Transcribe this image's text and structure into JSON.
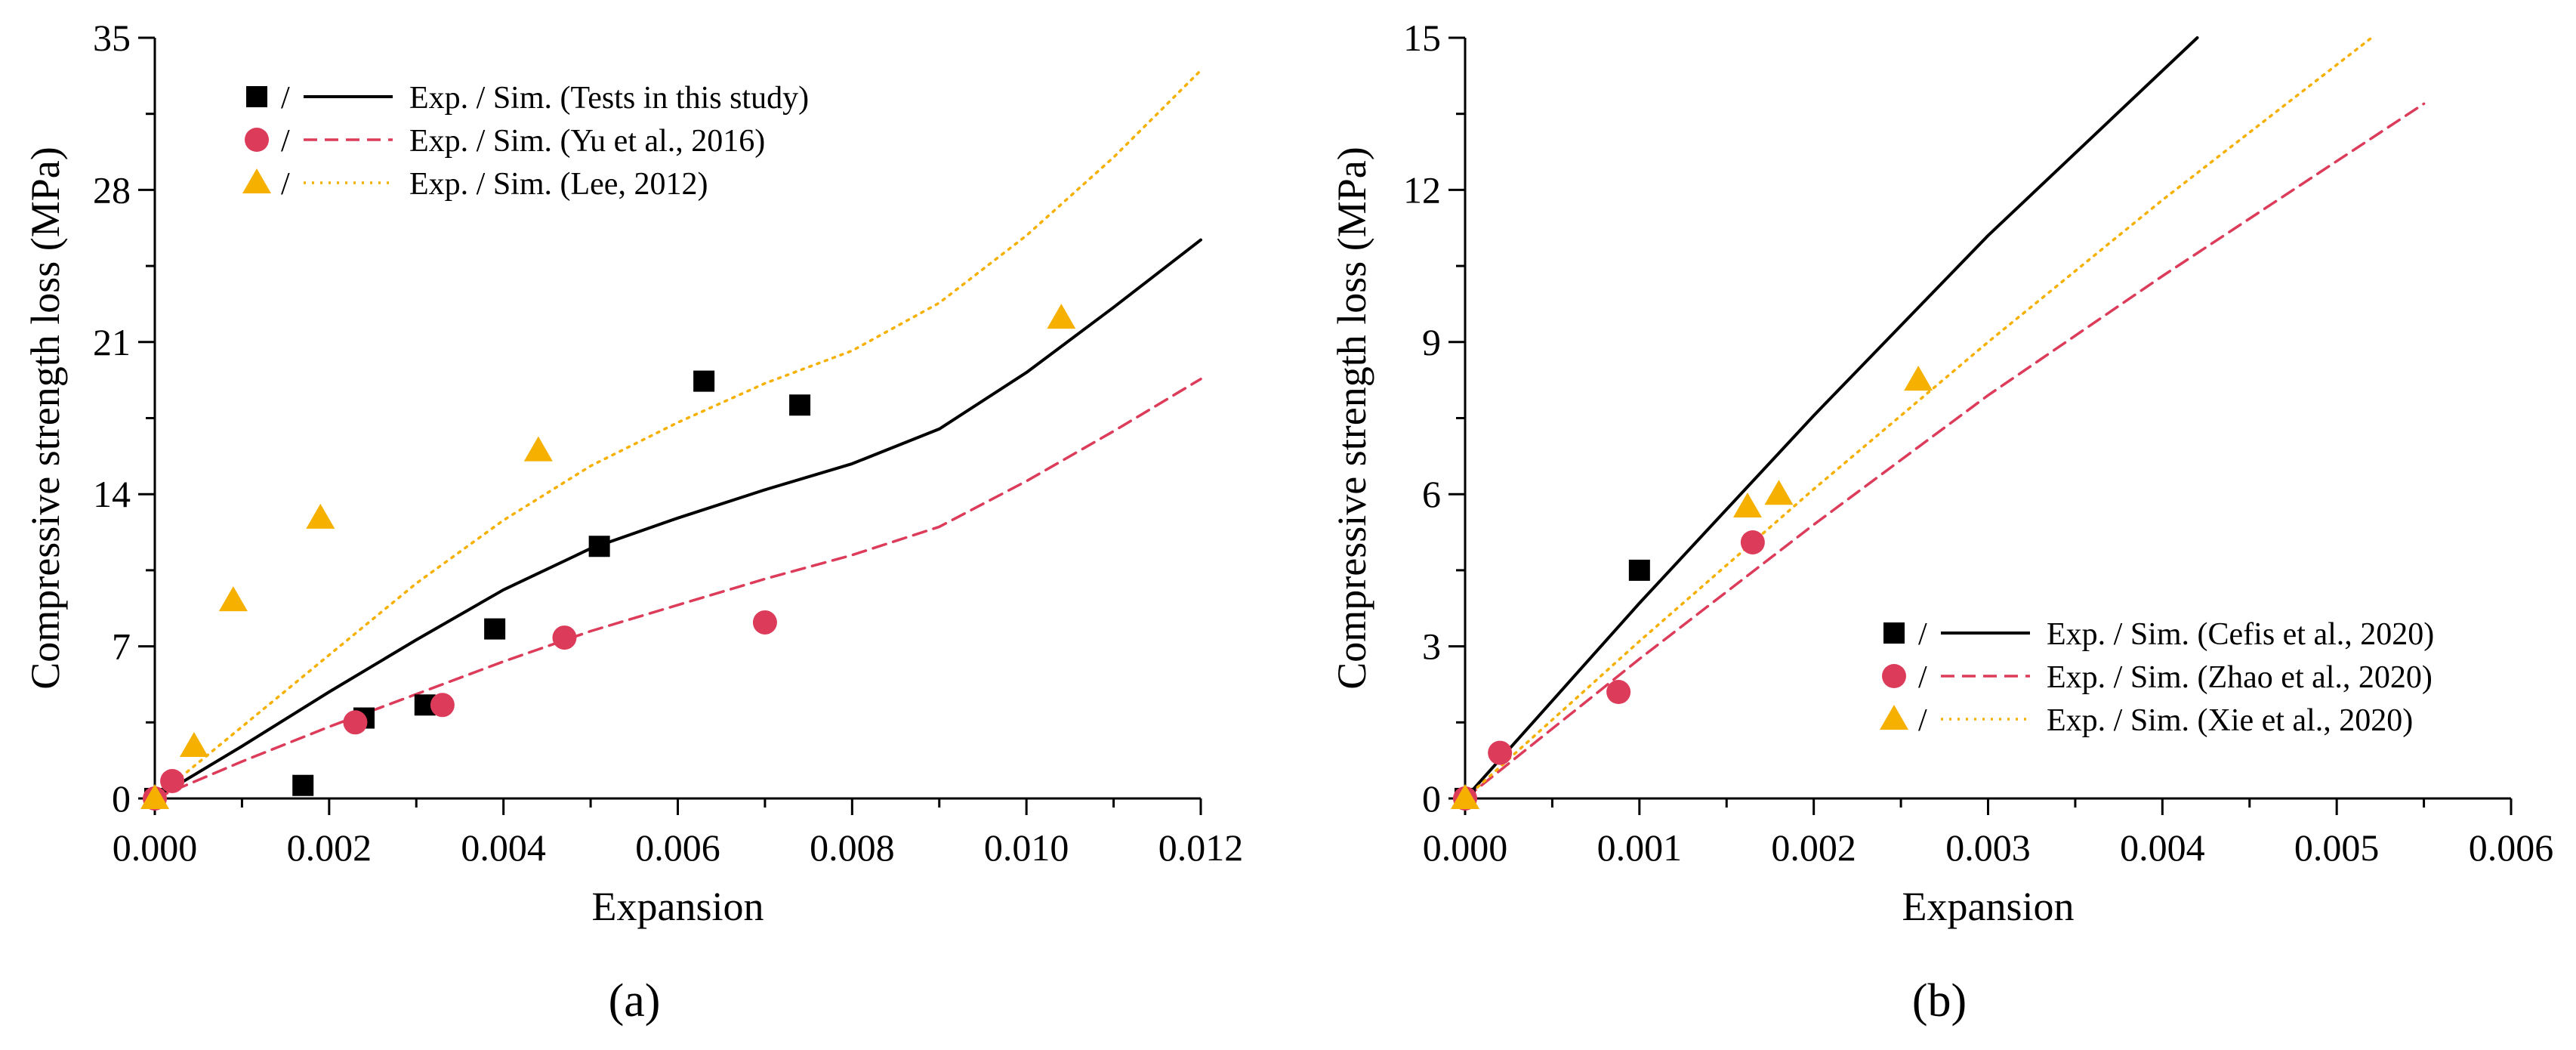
{
  "chart_data": [
    {
      "type": "scatter",
      "panel": "(a)",
      "panel_letter": "a",
      "xlabel": "Expansion",
      "ylabel": "Compressive strength loss (MPa)",
      "xlim": [
        0,
        0.012
      ],
      "ylim": [
        0,
        35
      ],
      "xticks": [
        0.0,
        0.002,
        0.004,
        0.006,
        0.008,
        0.01,
        0.012
      ],
      "xtick_labels": [
        "0.000",
        "0.002",
        "0.004",
        "0.006",
        "0.008",
        "0.010",
        "0.012"
      ],
      "yticks": [
        0,
        7,
        14,
        21,
        28,
        35
      ],
      "ytick_labels": [
        "0",
        "7",
        "14",
        "21",
        "28",
        "35"
      ],
      "legend_position": "top-left",
      "series": [
        {
          "name": "Exp. / Sim. (Tests in this study)",
          "marker": "square",
          "line": "solid",
          "color": "#000000",
          "points": [
            [
              0.0,
              0.0
            ],
            [
              0.0017,
              0.6
            ],
            [
              0.0024,
              3.7
            ],
            [
              0.0031,
              4.3
            ],
            [
              0.0039,
              7.8
            ],
            [
              0.0051,
              11.6
            ],
            [
              0.0063,
              19.2
            ],
            [
              0.0074,
              18.1
            ]
          ],
          "curve": [
            [
              0.0,
              0.0
            ],
            [
              0.001,
              2.4
            ],
            [
              0.002,
              4.9
            ],
            [
              0.003,
              7.3
            ],
            [
              0.004,
              9.6
            ],
            [
              0.005,
              11.5
            ],
            [
              0.006,
              12.9
            ],
            [
              0.007,
              14.2
            ],
            [
              0.008,
              15.4
            ],
            [
              0.009,
              17.0
            ],
            [
              0.01,
              19.6
            ],
            [
              0.011,
              22.6
            ],
            [
              0.012,
              25.7
            ]
          ]
        },
        {
          "name": "Exp. / Sim. (Yu et al., 2016)",
          "marker": "circle",
          "line": "dashed",
          "color": "#dc3c5a",
          "points": [
            [
              0.0,
              0.0
            ],
            [
              0.0002,
              0.8
            ],
            [
              0.0023,
              3.5
            ],
            [
              0.0033,
              4.3
            ],
            [
              0.0047,
              7.4
            ],
            [
              0.007,
              8.1
            ]
          ],
          "curve": [
            [
              0.0,
              0.0
            ],
            [
              0.001,
              1.7
            ],
            [
              0.002,
              3.3
            ],
            [
              0.003,
              4.8
            ],
            [
              0.004,
              6.3
            ],
            [
              0.005,
              7.7
            ],
            [
              0.006,
              8.9
            ],
            [
              0.007,
              10.1
            ],
            [
              0.008,
              11.2
            ],
            [
              0.009,
              12.5
            ],
            [
              0.01,
              14.6
            ],
            [
              0.011,
              16.9
            ],
            [
              0.012,
              19.3
            ]
          ]
        },
        {
          "name": "Exp. / Sim. (Lee, 2012)",
          "marker": "triangle",
          "line": "dotted",
          "color": "#f5b000",
          "points": [
            [
              0.0,
              0.0
            ],
            [
              0.00045,
              2.4
            ],
            [
              0.0009,
              9.1
            ],
            [
              0.0019,
              12.9
            ],
            [
              0.0044,
              16.0
            ],
            [
              0.0104,
              22.1
            ]
          ],
          "curve": [
            [
              0.0,
              0.0
            ],
            [
              0.001,
              3.3
            ],
            [
              0.002,
              6.6
            ],
            [
              0.003,
              9.9
            ],
            [
              0.004,
              12.8
            ],
            [
              0.005,
              15.3
            ],
            [
              0.006,
              17.3
            ],
            [
              0.007,
              19.1
            ],
            [
              0.008,
              20.6
            ],
            [
              0.009,
              22.8
            ],
            [
              0.01,
              25.9
            ],
            [
              0.011,
              29.5
            ],
            [
              0.012,
              33.5
            ]
          ]
        }
      ]
    },
    {
      "type": "scatter",
      "panel": "(b)",
      "panel_letter": "b",
      "xlabel": "Expansion",
      "ylabel": "Compressive strength loss (MPa)",
      "xlim": [
        0,
        0.006
      ],
      "ylim": [
        0,
        15
      ],
      "xticks": [
        0.0,
        0.001,
        0.002,
        0.003,
        0.004,
        0.005,
        0.006
      ],
      "xtick_labels": [
        "0.000",
        "0.001",
        "0.002",
        "0.003",
        "0.004",
        "0.005",
        "0.006"
      ],
      "yticks": [
        0,
        3,
        6,
        9,
        12,
        15
      ],
      "ytick_labels": [
        "0",
        "3",
        "6",
        "9",
        "12",
        "15"
      ],
      "legend_position": "bottom-right",
      "series": [
        {
          "name": "Exp. / Sim. (Cefis et al., 2020)",
          "marker": "square",
          "line": "solid",
          "color": "#000000",
          "points": [
            [
              0.0,
              0.0
            ],
            [
              0.001,
              4.5
            ]
          ],
          "curve": [
            [
              0.0,
              0.0
            ],
            [
              0.001,
              3.85
            ],
            [
              0.002,
              7.55
            ],
            [
              0.003,
              11.1
            ],
            [
              0.0042,
              15.0
            ]
          ]
        },
        {
          "name": "Exp. / Sim. (Zhao et al., 2020)",
          "marker": "circle",
          "line": "dashed",
          "color": "#dc3c5a",
          "points": [
            [
              0.0,
              0.0
            ],
            [
              0.0002,
              0.9
            ],
            [
              0.00088,
              2.1
            ],
            [
              0.00165,
              5.05
            ]
          ],
          "curve": [
            [
              0.0,
              0.0
            ],
            [
              0.001,
              2.75
            ],
            [
              0.002,
              5.4
            ],
            [
              0.003,
              7.95
            ],
            [
              0.004,
              10.3
            ],
            [
              0.0055,
              13.7
            ]
          ]
        },
        {
          "name": "Exp. / Sim. (Xie et al., 2020)",
          "marker": "triangle",
          "line": "dotted",
          "color": "#f5b000",
          "points": [
            [
              0.0,
              0.0
            ],
            [
              0.00162,
              5.75
            ],
            [
              0.0018,
              6.0
            ],
            [
              0.0026,
              8.25
            ]
          ],
          "curve": [
            [
              0.0,
              0.0
            ],
            [
              0.001,
              3.1
            ],
            [
              0.002,
              6.1
            ],
            [
              0.003,
              9.0
            ],
            [
              0.004,
              11.8
            ],
            [
              0.0052,
              15.0
            ]
          ]
        }
      ]
    }
  ]
}
